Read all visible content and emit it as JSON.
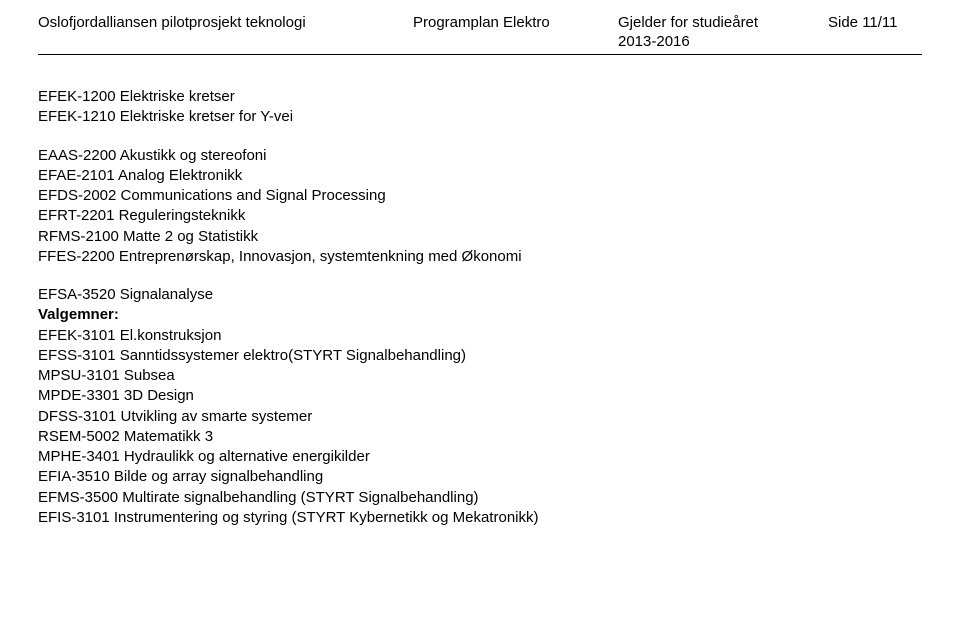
{
  "header": {
    "left": "Oslofjordalliansen pilotprosjekt teknologi",
    "center": "Programplan Elektro",
    "right_label": "Gjelder for studieåret",
    "page_label": "Side 11/11",
    "year_range": "2013-2016"
  },
  "blocks": {
    "a1": "EFEK-1200 Elektriske kretser",
    "a2": "EFEK-1210 Elektriske kretser for Y-vei",
    "b1": "EAAS-2200 Akustikk og stereofoni",
    "b2": "EFAE-2101 Analog Elektronikk",
    "b3": "EFDS-2002 Communications and Signal Processing",
    "b4": "EFRT-2201 Reguleringsteknikk",
    "b5": "RFMS-2100 Matte 2 og Statistikk",
    "b6": "FFES-2200 Entreprenørskap, Innovasjon, systemtenkning med Økonomi",
    "c1": "EFSA-3520 Signalanalyse",
    "c2": "Valgemner:",
    "c3": "EFEK-3101 El.konstruksjon",
    "c4": "EFSS-3101 Sanntidssystemer elektro(STYRT Signalbehandling)",
    "c5": "MPSU-3101 Subsea",
    "c6": "MPDE-3301 3D Design",
    "c7": "DFSS-3101 Utvikling av smarte systemer",
    "c8": "RSEM-5002 Matematikk 3",
    "c9": "MPHE-3401 Hydraulikk og alternative energikilder",
    "c10": "EFIA-3510 Bilde og array signalbehandling",
    "c11": "EFMS-3500 Multirate signalbehandling (STYRT Signalbehandling)",
    "c12": "EFIS-3101 Instrumentering og styring (STYRT Kybernetikk og Mekatronikk)"
  }
}
